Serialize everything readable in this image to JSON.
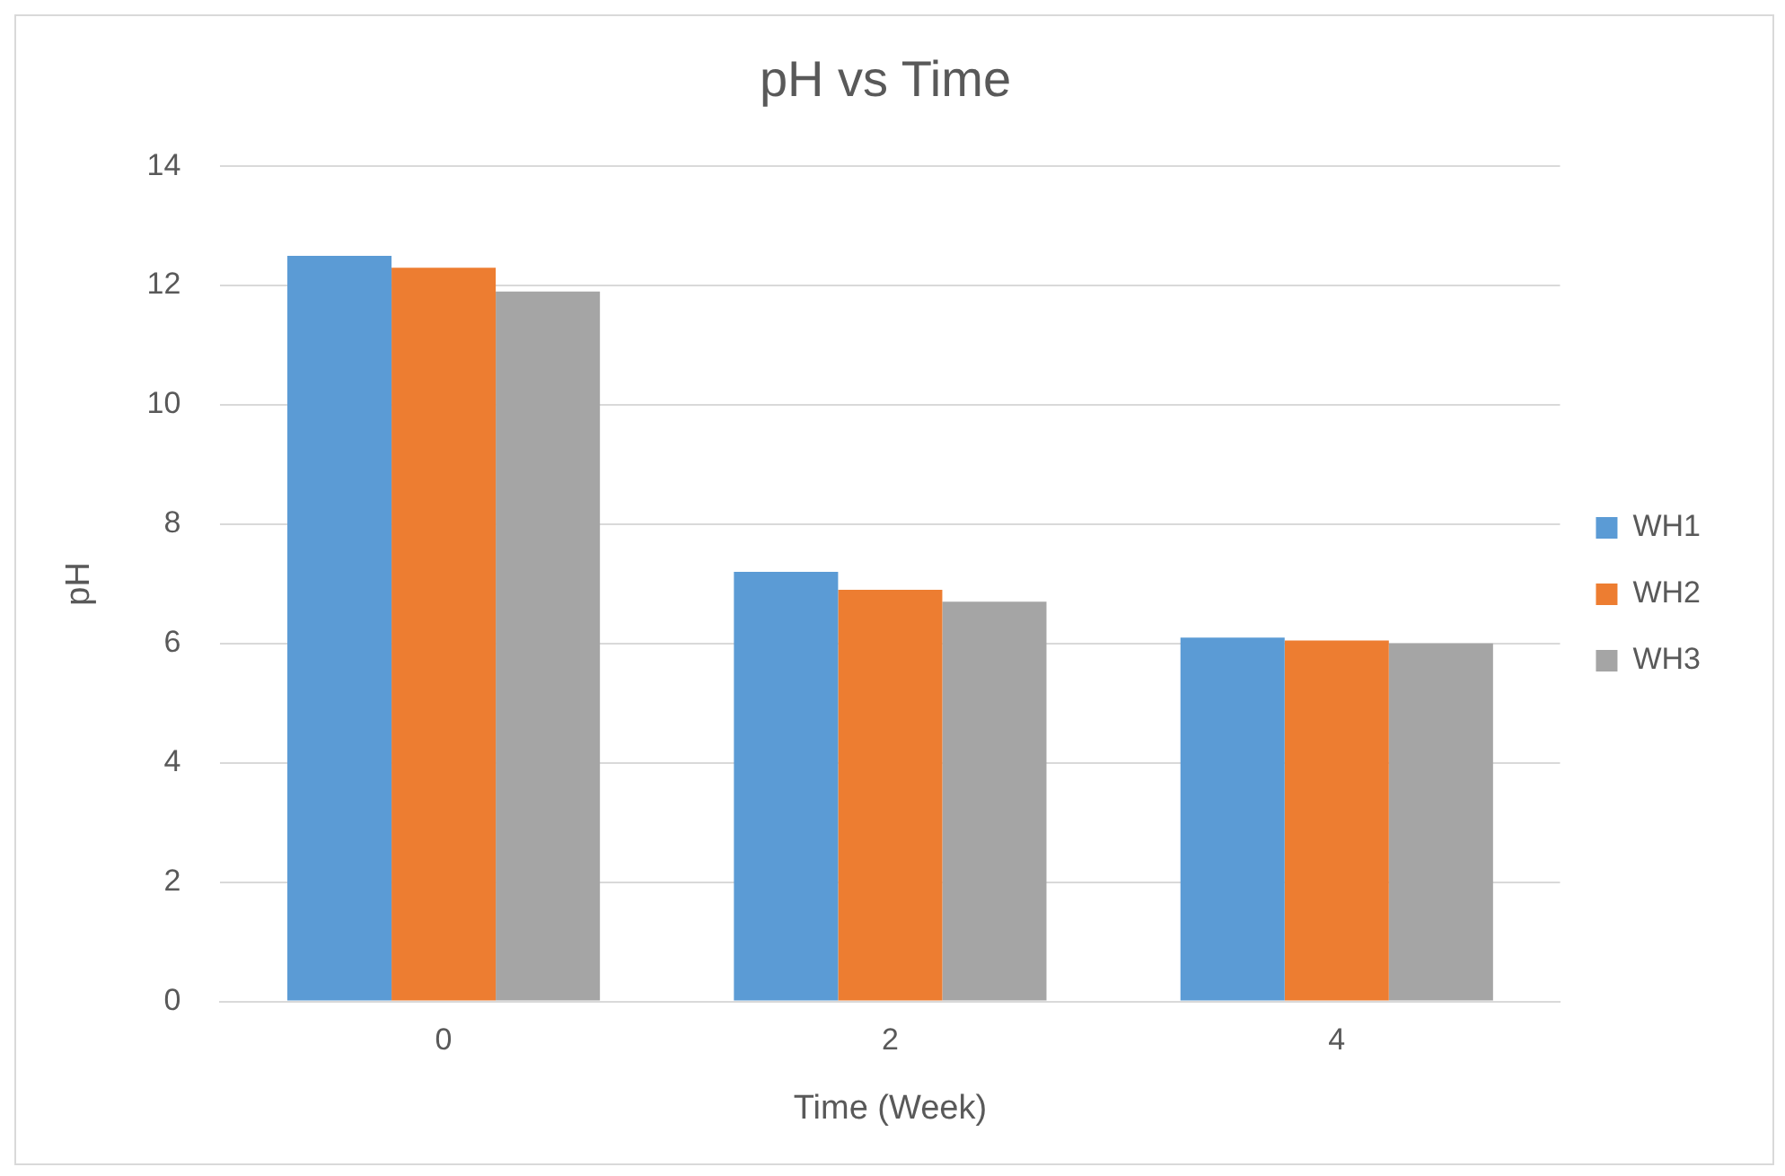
{
  "chart_data": {
    "type": "bar",
    "title": "pH vs Time",
    "xlabel": "Time (Week)",
    "ylabel": "pH",
    "categories": [
      "0",
      "2",
      "4"
    ],
    "series": [
      {
        "name": "WH1",
        "color": "#5b9bd5",
        "values": [
          12.5,
          7.2,
          6.1
        ]
      },
      {
        "name": "WH2",
        "color": "#ed7d31",
        "values": [
          12.3,
          6.9,
          6.05
        ]
      },
      {
        "name": "WH3",
        "color": "#a5a5a5",
        "values": [
          11.9,
          6.7,
          6.0
        ]
      }
    ],
    "ylim": [
      0,
      14
    ],
    "yticks": [
      0,
      2,
      4,
      6,
      8,
      10,
      12,
      14
    ],
    "grid": "y",
    "legend": "right"
  }
}
